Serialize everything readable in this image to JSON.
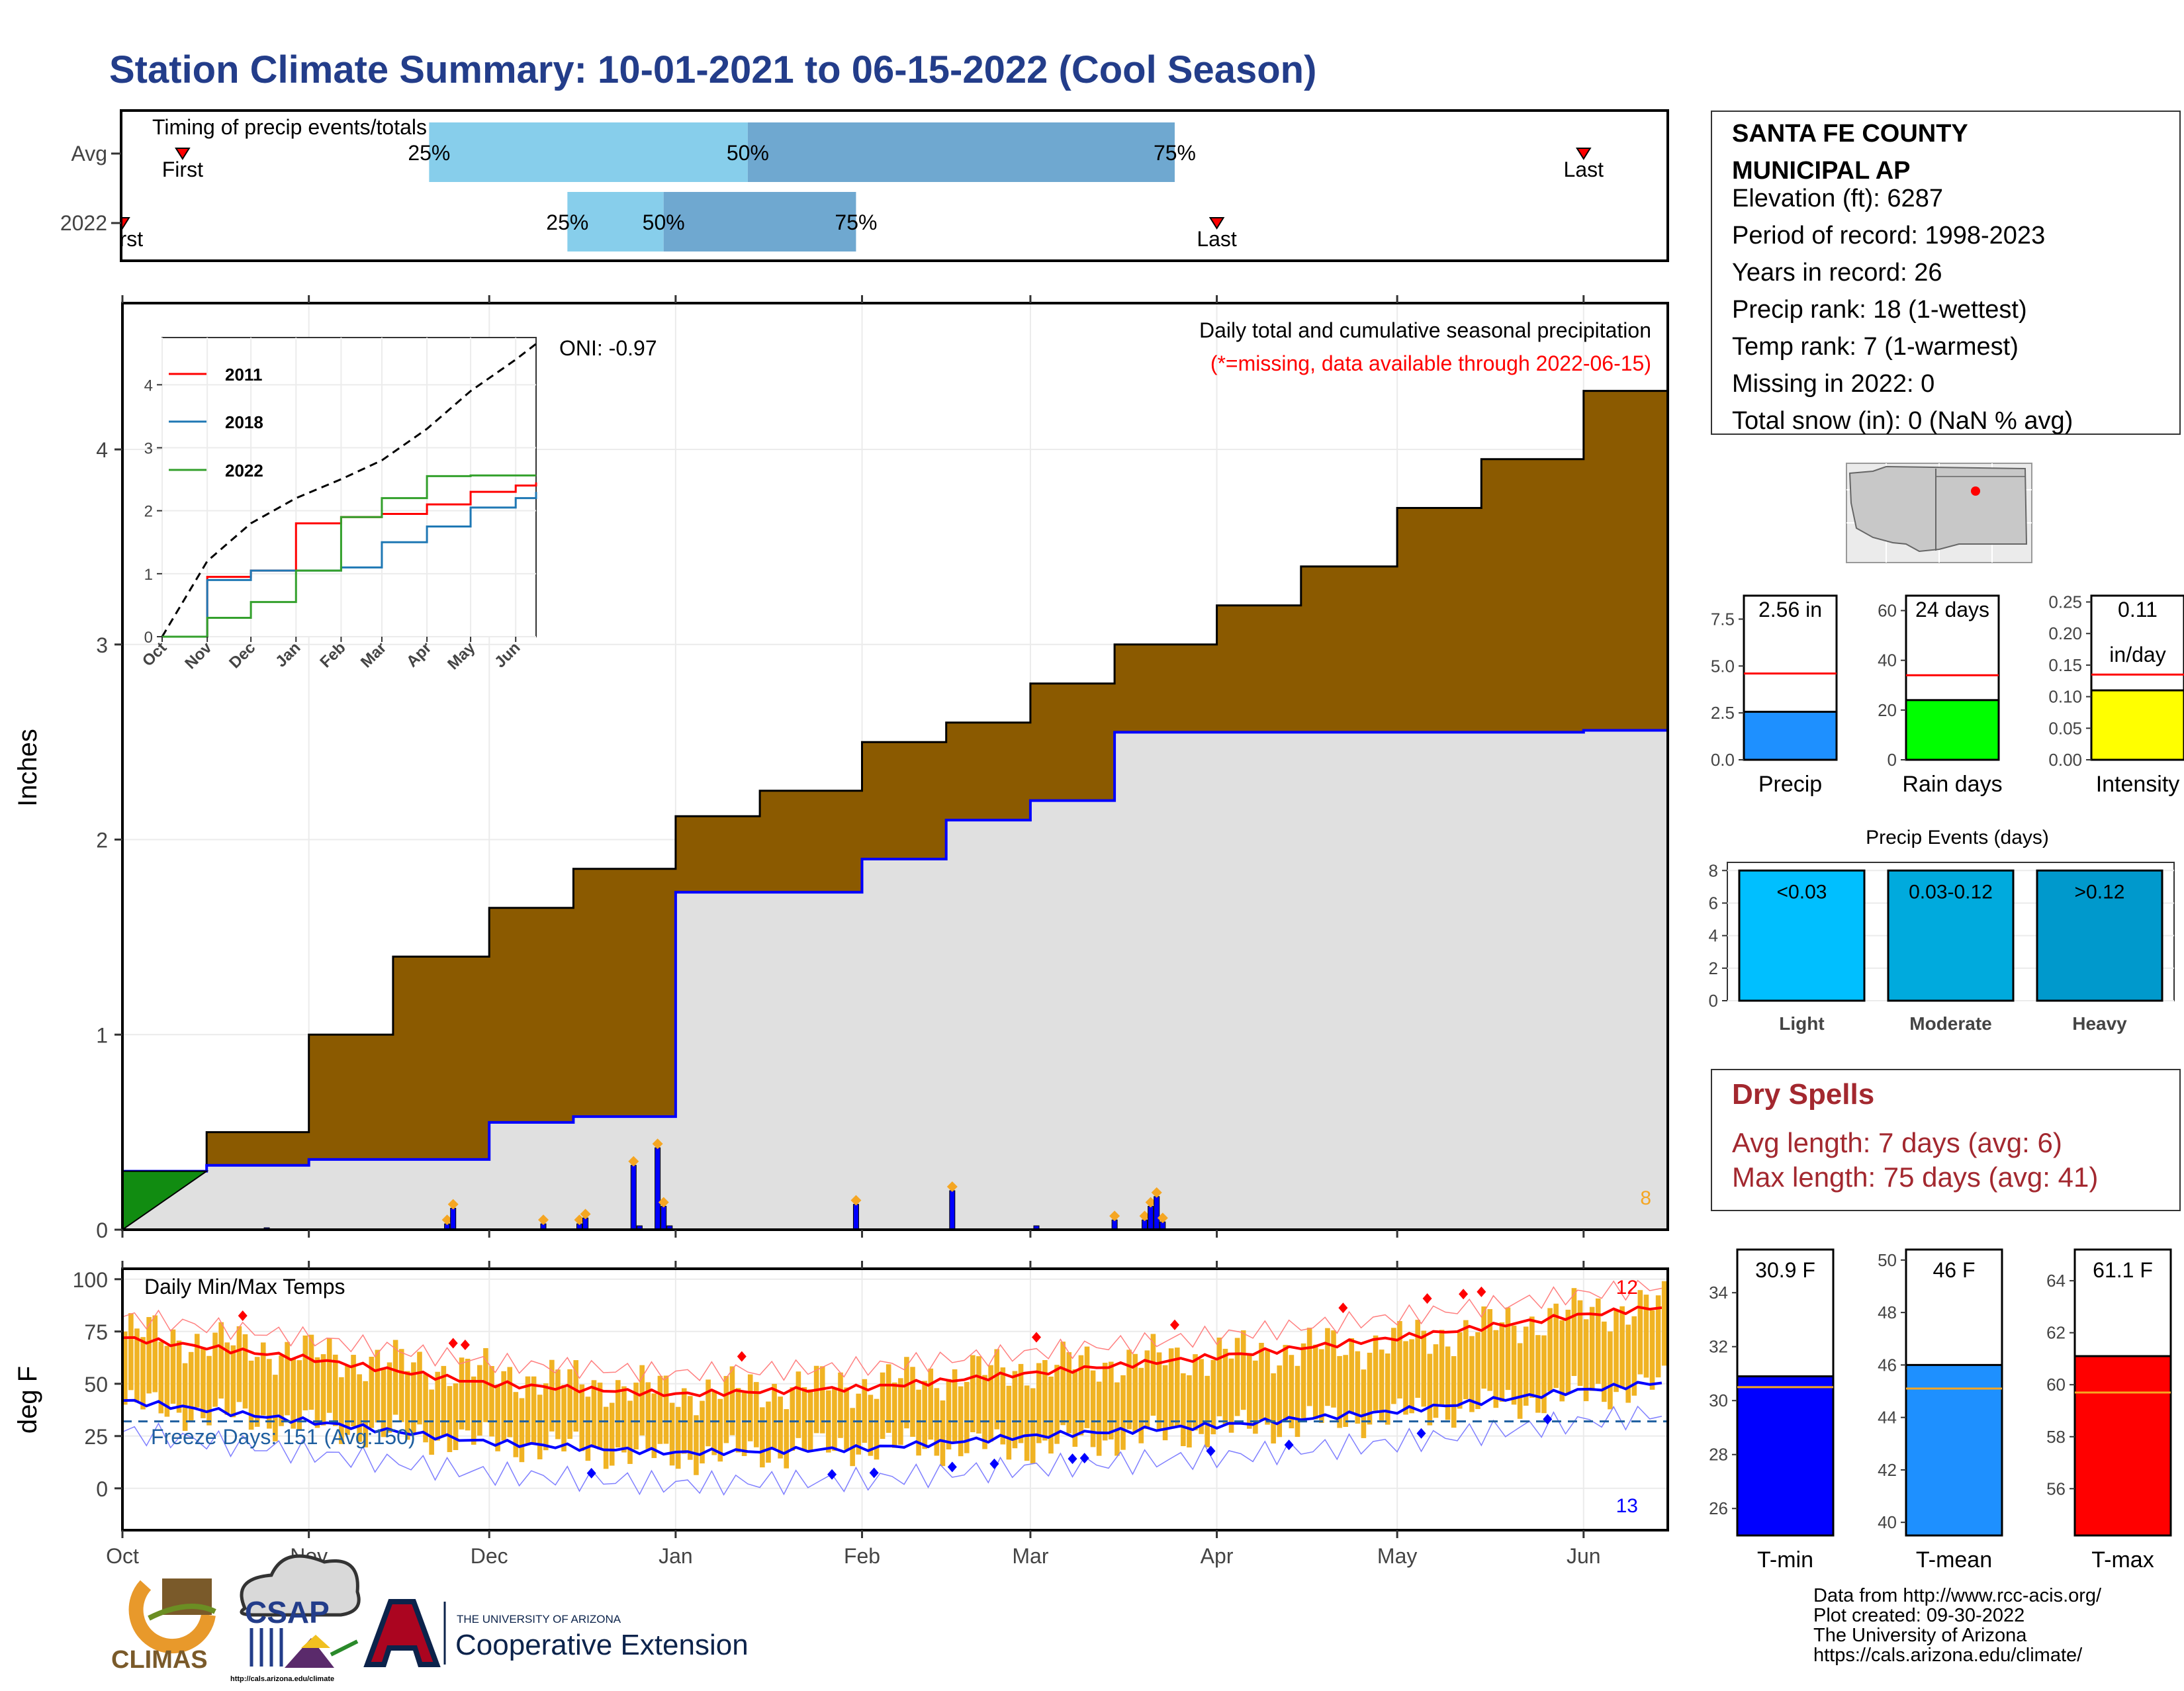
{
  "header": {
    "title": "Station Climate Summary: 10-01-2021 to 06-15-2022 (Cool Season)"
  },
  "colors": {
    "title": "#233d8a",
    "avg_cum": "#8b5a00",
    "season_cum": "#e0e0e0",
    "season_line": "#0000ff",
    "green_fill": "#118c11",
    "daily_bar": "#0000ff",
    "orange_marker": "#f5a623",
    "temp_bar": "#f0b323",
    "tmax_line": "#ff0000",
    "tmin_line": "#0000ff",
    "light_blue": "#87ceeb",
    "mid_blue": "#6fa8d0",
    "red": "#ff0000",
    "dry_spell": "#a3282f"
  },
  "timing_panel": {
    "title": "Timing of precip events/totals",
    "rows": [
      {
        "label": "Avg",
        "first_label": "First",
        "last_label": "Last",
        "p25": "25%",
        "p50": "50%",
        "p75": "75%"
      },
      {
        "label": "2022",
        "first_label": "First",
        "last_label": "Last",
        "p25": "25%",
        "p50": "50%",
        "p75": "75%"
      }
    ]
  },
  "precip_panel": {
    "ylabel": "Inches",
    "yticks": [
      "0",
      "1",
      "2",
      "3",
      "4"
    ],
    "xticks": [
      "Oct",
      "Nov",
      "Dec",
      "Jan",
      "Feb",
      "Mar",
      "Apr",
      "May",
      "Jun"
    ],
    "oni": "ONI: -0.97",
    "caption": "Daily total and cumulative seasonal precipitation",
    "missing_note": "(*=missing, data available through 2022-06-15)",
    "corner_count": "8"
  },
  "inset": {
    "yticks": [
      "0",
      "1",
      "2",
      "3",
      "4"
    ],
    "xticks": [
      "Oct",
      "Nov",
      "Dec",
      "Jan",
      "Feb",
      "Mar",
      "Apr",
      "May",
      "Jun"
    ],
    "legend": [
      {
        "name": "2011",
        "color": "#ff0000"
      },
      {
        "name": "2018",
        "color": "#1f78b4"
      },
      {
        "name": "2022",
        "color": "#33a02c"
      }
    ]
  },
  "temp_panel": {
    "title": "Daily Min/Max Temps",
    "ylabel": "deg F",
    "yticks": [
      "0",
      "25",
      "50",
      "75",
      "100"
    ],
    "freeze_label": "Freeze Days: 151 (Avg:150)",
    "count_high": "12",
    "count_low": "13"
  },
  "station": {
    "name_line1": "SANTA FE COUNTY",
    "name_line2": "MUNICIPAL AP",
    "elevation": "Elevation (ft): 6287",
    "period": "Period of record: 1998-2023",
    "years": "Years in record: 26",
    "precip_rank": "Precip rank: 18 (1-wettest)",
    "temp_rank": "Temp rank: 7 (1-warmest)",
    "missing": "Missing in 2022: 0",
    "snow": "Total snow (in): 0 (NaN % avg)"
  },
  "mini_bars": {
    "precip": {
      "label": "Precip",
      "value_label": "2.56 in",
      "yticks": [
        "0.0",
        "2.5",
        "5.0",
        "7.5"
      ]
    },
    "rain_days": {
      "label": "Rain days",
      "value_label": "24 days",
      "yticks": [
        "0",
        "20",
        "40",
        "60"
      ]
    },
    "intensity": {
      "label": "Intensity",
      "value_label1": "0.11",
      "value_label2": "in/day",
      "yticks": [
        "0.00",
        "0.05",
        "0.10",
        "0.15",
        "0.20",
        "0.25"
      ]
    }
  },
  "events": {
    "title": "Precip Events (days)",
    "yticks": [
      "0",
      "2",
      "4",
      "6",
      "8"
    ],
    "bars": [
      {
        "label": "Light",
        "range": "<0.03"
      },
      {
        "label": "Moderate",
        "range": "0.03-0.12"
      },
      {
        "label": "Heavy",
        "range": ">0.12"
      }
    ]
  },
  "dry_spells": {
    "title": "Dry Spells",
    "avg_length": "Avg length: 7 days (avg: 6)",
    "max_length": "Max length: 75 days (avg: 41)"
  },
  "temp_bars": {
    "tmin": {
      "label": "T-min",
      "value_label": "30.9 F",
      "yticks": [
        "26",
        "28",
        "30",
        "32",
        "34"
      ]
    },
    "tmean": {
      "label": "T-mean",
      "value_label": "46 F",
      "yticks": [
        "40",
        "42",
        "44",
        "46",
        "48",
        "50"
      ]
    },
    "tmax": {
      "label": "T-max",
      "value_label": "61.1 F",
      "yticks": [
        "56",
        "58",
        "60",
        "62",
        "64"
      ]
    }
  },
  "footer": {
    "line1": "Data from http://www.rcc-acis.org/",
    "line2": "Plot created: 09-30-2022",
    "line3": "The University of Arizona",
    "line4": "https://cals.arizona.edu/climate/"
  },
  "logos": {
    "climas": "CLIMAS",
    "csap": "CSAP",
    "csap_url": "http://cals.arizona.edu/climate",
    "ua_small": "THE UNIVERSITY OF ARIZONA",
    "ua_big": "Cooperative Extension"
  },
  "chart_data": [
    {
      "type": "bar",
      "title": "Timing of precip events/totals",
      "categories": [
        "Avg",
        "2022"
      ],
      "series": [
        {
          "name": "25%",
          "values": [
            "2021-11-21",
            "2021-12-14"
          ]
        },
        {
          "name": "50%",
          "values": [
            "2022-01-13",
            "2021-12-30"
          ]
        },
        {
          "name": "75%",
          "values": [
            "2022-03-25",
            "2022-01-31"
          ]
        },
        {
          "name": "First",
          "values": [
            "2021-10-11",
            "2021-10-01"
          ]
        },
        {
          "name": "Last",
          "values": [
            "2022-06-01",
            "2022-04-01"
          ]
        }
      ]
    },
    {
      "type": "area",
      "title": "Daily total and cumulative seasonal precipitation",
      "ylabel": "Inches",
      "ylim": [
        0,
        4.75
      ],
      "xlim": [
        "2021-10-01",
        "2022-06-15"
      ],
      "x": [
        "2021-10-01",
        "2021-10-15",
        "2021-11-01",
        "2021-11-15",
        "2021-12-01",
        "2021-12-15",
        "2022-01-01",
        "2022-01-15",
        "2022-02-01",
        "2022-02-15",
        "2022-03-01",
        "2022-03-15",
        "2022-04-01",
        "2022-04-15",
        "2022-05-01",
        "2022-05-15",
        "2022-06-01",
        "2022-06-15"
      ],
      "series": [
        {
          "name": "avg_cumulative",
          "values": [
            0.0,
            0.5,
            1.0,
            1.4,
            1.65,
            1.85,
            2.12,
            2.25,
            2.5,
            2.6,
            2.8,
            3.0,
            3.2,
            3.4,
            3.7,
            3.95,
            4.3,
            4.4
          ]
        },
        {
          "name": "season_cumulative",
          "values": [
            0.3,
            0.33,
            0.36,
            0.36,
            0.55,
            0.58,
            1.73,
            1.73,
            1.9,
            2.1,
            2.2,
            2.55,
            2.55,
            2.55,
            2.55,
            2.55,
            2.56,
            2.56
          ]
        },
        {
          "name": "daily",
          "x": [
            "2021-10-25",
            "2021-11-24",
            "2021-11-25",
            "2021-12-10",
            "2021-12-16",
            "2021-12-17",
            "2021-12-25",
            "2021-12-26",
            "2021-12-29",
            "2021-12-30",
            "2021-12-31",
            "2022-01-31",
            "2022-02-16",
            "2022-03-02",
            "2022-03-15",
            "2022-03-20",
            "2022-03-21",
            "2022-03-22",
            "2022-03-23"
          ],
          "values": [
            0.01,
            0.03,
            0.11,
            0.03,
            0.03,
            0.06,
            0.33,
            0.02,
            0.42,
            0.12,
            0.02,
            0.13,
            0.2,
            0.02,
            0.05,
            0.05,
            0.12,
            0.17,
            0.04
          ]
        }
      ]
    },
    {
      "type": "line",
      "title": "",
      "ylim": [
        0,
        4.5
      ],
      "x": [
        "2021-10-01",
        "2021-11-01",
        "2021-12-01",
        "2022-01-01",
        "2022-02-01",
        "2022-03-01",
        "2022-04-01",
        "2022-05-01",
        "2022-06-01",
        "2022-06-15"
      ],
      "series": [
        {
          "name": "",
          "values": [
            0.0,
            1.2,
            1.8,
            2.2,
            2.5,
            2.8,
            3.3,
            3.9,
            4.4,
            4.65
          ]
        },
        {
          "name": "2011",
          "values": [
            0.0,
            0.95,
            1.05,
            1.8,
            1.9,
            1.95,
            2.1,
            2.3,
            2.4,
            2.45
          ]
        },
        {
          "name": "2018",
          "values": [
            0.0,
            0.9,
            1.05,
            1.05,
            1.1,
            1.5,
            1.75,
            2.05,
            2.2,
            2.3
          ]
        },
        {
          "name": "2022",
          "values": [
            0.0,
            0.3,
            0.55,
            1.05,
            1.9,
            2.2,
            2.55,
            2.56,
            2.56,
            2.56
          ]
        }
      ]
    },
    {
      "type": "line",
      "title": "Daily Min/Max Temps",
      "ylabel": "deg F",
      "ylim": [
        -20,
        105
      ],
      "x": [
        "2021-10-01",
        "2021-11-01",
        "2021-12-01",
        "2022-01-01",
        "2022-02-01",
        "2022-03-01",
        "2022-04-01",
        "2022-05-01",
        "2022-06-01",
        "2022-06-15"
      ],
      "series": [
        {
          "name": "avg_tmax",
          "values": [
            72,
            62,
            50,
            45,
            48,
            55,
            63,
            72,
            83,
            87
          ]
        },
        {
          "name": "avg_tmin",
          "values": [
            42,
            32,
            22,
            17,
            19,
            25,
            30,
            37,
            47,
            51
          ]
        },
        {
          "name": "tmax",
          "values": [
            75,
            64,
            55,
            46,
            50,
            58,
            64,
            70,
            85,
            88
          ]
        },
        {
          "name": "tmin",
          "values": [
            40,
            30,
            22,
            15,
            20,
            20,
            28,
            35,
            45,
            50
          ]
        },
        {
          "name": "freeze_line",
          "values": [
            32,
            32,
            32,
            32,
            32,
            32,
            32,
            32,
            32,
            32
          ]
        }
      ]
    },
    {
      "type": "bar",
      "categories": [
        "Precip",
        "Rain days",
        "Intensity"
      ],
      "series": [
        {
          "name": "observed",
          "values": [
            2.56,
            24,
            0.11
          ]
        },
        {
          "name": "average",
          "values": [
            4.6,
            34,
            0.135
          ]
        }
      ]
    },
    {
      "type": "bar",
      "title": "Precip Events (days)",
      "categories": [
        "Light",
        "Moderate",
        "Heavy"
      ],
      "values": [
        8,
        8,
        8
      ],
      "ylim": [
        0,
        8.5
      ]
    },
    {
      "type": "bar",
      "categories": [
        "T-min",
        "T-mean",
        "T-max"
      ],
      "series": [
        {
          "name": "observed",
          "values": [
            30.9,
            46,
            61.1
          ]
        },
        {
          "name": "average",
          "values": [
            30.5,
            45.1,
            59.7
          ]
        }
      ]
    }
  ]
}
